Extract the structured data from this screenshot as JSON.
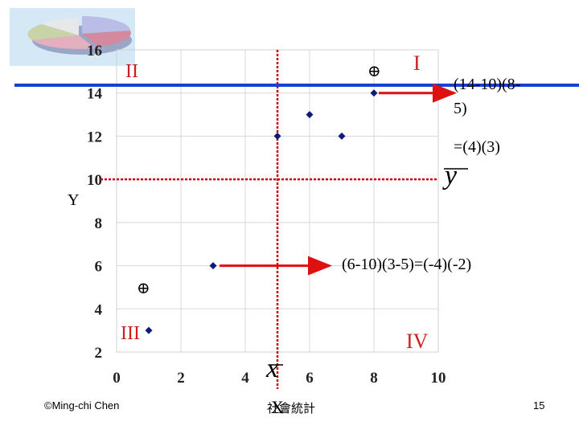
{
  "chart_data": {
    "type": "scatter",
    "xlabel": "X",
    "ylabel": "Y",
    "xlim": [
      0,
      10
    ],
    "ylim": [
      2,
      16
    ],
    "x_ticks": [
      0,
      2,
      4,
      6,
      8,
      10
    ],
    "y_ticks": [
      2,
      4,
      6,
      8,
      10,
      12,
      14,
      16
    ],
    "points": [
      {
        "x": 1,
        "y": 3
      },
      {
        "x": 3,
        "y": 6
      },
      {
        "x": 5,
        "y": 12
      },
      {
        "x": 6,
        "y": 13
      },
      {
        "x": 7,
        "y": 12
      },
      {
        "x": 8,
        "y": 14
      }
    ],
    "mean_x": 5,
    "mean_y": 10,
    "grid": true,
    "colors": {
      "points": "#0d1a7a",
      "mean_lines": "#cc0000",
      "arrows": "#e01010",
      "highlight_line": "#1a3fd6",
      "grid": "#d8d8d8"
    }
  },
  "quadrants": {
    "q1": "I",
    "q2": "II",
    "q3": "III",
    "q4": "IV"
  },
  "signs": {
    "q1": "⊕",
    "q3": "⊕"
  },
  "annotations": {
    "upper_line1": "(14-10)(8-",
    "upper_line2": "5)",
    "upper_result": "=(4)(3)",
    "lower": "(6-10)(3-5)=(-4)(-2)",
    "xbar": "x",
    "ybar": "y"
  },
  "footer": {
    "author": "©Ming-chi Chen",
    "course": "社會統計",
    "page": "15"
  }
}
